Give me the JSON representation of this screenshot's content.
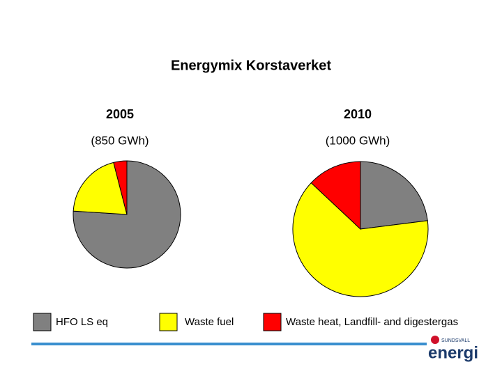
{
  "chart_data": {
    "type": "pie",
    "title": "Energymix Korstaverket",
    "categories": [
      "HFO LS eq",
      "Waste fuel",
      "Waste heat, Landfill- and digestergas"
    ],
    "colors": [
      "#808080",
      "#ffff00",
      "#ff0000"
    ],
    "pies": [
      {
        "title": "2005",
        "subtitle": "(850 GWh)",
        "values": [
          76,
          20,
          4
        ]
      },
      {
        "title": "2010",
        "subtitle": "(1000 GWh)",
        "values": [
          23,
          64,
          13
        ]
      }
    ]
  },
  "logo": {
    "top": "SUNDSVALL",
    "name": "energi"
  }
}
